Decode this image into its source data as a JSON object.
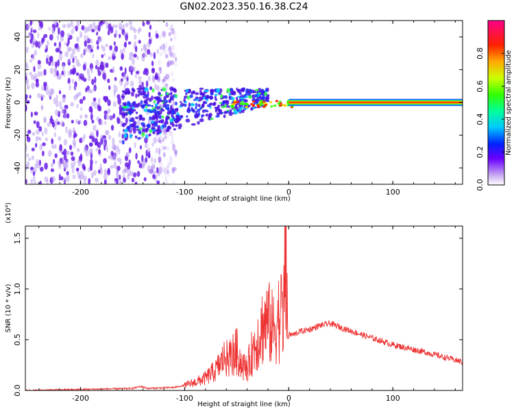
{
  "title": "GN02.2023.350.16.38.C24",
  "colors": {
    "snr_line": "#ee3333",
    "spectrogram_low": "#6a2be6",
    "axis": "#000000"
  },
  "chart_data": [
    {
      "type": "heatmap",
      "xlabel": "Height of straight line (km)",
      "ylabel": "Frequency (Hz)",
      "xlim": [
        -253,
        167
      ],
      "ylim": [
        -50,
        50
      ],
      "x_ticks": [
        -200,
        -100,
        0,
        100
      ],
      "y_ticks": [
        -40,
        -20,
        0,
        20,
        40
      ],
      "x_tick_labels": [
        "-200",
        "-100",
        "0",
        "100"
      ],
      "y_tick_labels": [
        "-40",
        "-20",
        "0",
        "20",
        "40"
      ],
      "colorbar": {
        "label": "Normalized spectral amplitude",
        "range": [
          0,
          1
        ],
        "ticks": [
          0.0,
          0.2,
          0.4,
          0.6,
          0.8
        ],
        "tick_labels": [
          "0.0",
          "0.2",
          "0.4",
          "0.6",
          "0.8"
        ],
        "colormap": "white-purple-blue-cyan-green-yellow-orange-red-magenta"
      },
      "noise_region_x": [
        -253,
        -108
      ],
      "signal_band": {
        "x_start": 0,
        "x_end": 167,
        "frequency": 0,
        "amplitude": 1.0
      }
    },
    {
      "type": "line",
      "xlabel": "Height of straight line (km)",
      "ylabel": "SNR (10 * v/v)",
      "scale_label": "(x10⁴)",
      "xlim": [
        -253,
        167
      ],
      "ylim": [
        0,
        1.62
      ],
      "x_ticks": [
        -200,
        -100,
        0,
        100
      ],
      "y_ticks": [
        0.0,
        0.5,
        1.0,
        1.5
      ],
      "x_tick_labels": [
        "-200",
        "-100",
        "0",
        "100"
      ],
      "y_tick_labels": [
        "0.0",
        "0.5",
        "1.0",
        "1.5"
      ],
      "grid": false,
      "series": [
        {
          "x": [
            -253,
            -200,
            -150,
            -142,
            -135,
            -110,
            -100,
            -90,
            -80,
            -70,
            -60,
            -50,
            -45,
            -40,
            -35,
            -30,
            -25,
            -20,
            -15,
            -10,
            -5,
            -3,
            0,
            5,
            10,
            20,
            30,
            40,
            50,
            70,
            100,
            130,
            167
          ],
          "values": [
            0.0,
            0.01,
            0.02,
            0.04,
            0.02,
            0.03,
            0.05,
            0.08,
            0.12,
            0.2,
            0.35,
            0.45,
            0.3,
            0.25,
            0.45,
            0.6,
            0.75,
            0.8,
            0.7,
            0.85,
            0.9,
            1.55,
            0.55,
            0.55,
            0.58,
            0.6,
            0.64,
            0.66,
            0.62,
            0.55,
            0.45,
            0.38,
            0.28
          ]
        }
      ]
    }
  ]
}
